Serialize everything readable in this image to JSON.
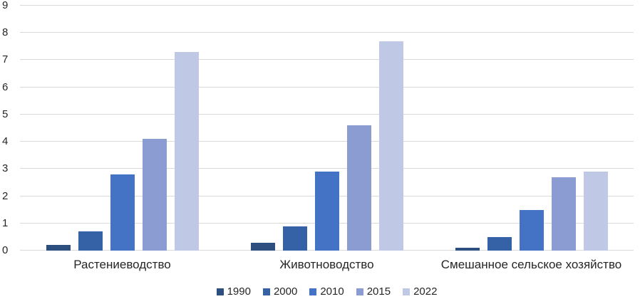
{
  "chart_data": {
    "type": "bar",
    "title": "",
    "xlabel": "",
    "ylabel": "",
    "categories": [
      "Растениеводство",
      "Животноводство",
      "Смешанное сельское хозяйство"
    ],
    "series": [
      {
        "name": "1990",
        "color": "#2D4F80",
        "values": [
          0.2,
          0.3,
          0.1
        ]
      },
      {
        "name": "2000",
        "color": "#3562A7",
        "values": [
          0.7,
          0.9,
          0.5
        ]
      },
      {
        "name": "2010",
        "color": "#4472C4",
        "values": [
          2.8,
          2.9,
          1.5
        ]
      },
      {
        "name": "2015",
        "color": "#8A9CD1",
        "values": [
          4.1,
          4.6,
          2.7
        ]
      },
      {
        "name": "2022",
        "color": "#BFC8E4",
        "values": [
          7.3,
          7.7,
          2.9
        ]
      }
    ],
    "ylim": [
      0,
      9
    ],
    "y_ticks": [
      0,
      1,
      2,
      3,
      4,
      5,
      6,
      7,
      8,
      9
    ],
    "grid": true,
    "legend_position": "bottom"
  },
  "colors": {
    "background": "#FFFFFF",
    "gridline": "#D9D9D9",
    "text": "#262626"
  }
}
